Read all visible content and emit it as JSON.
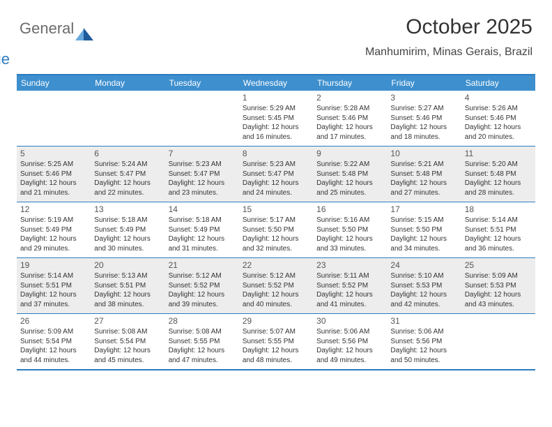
{
  "logo": {
    "word1": "General",
    "word2": "Blue"
  },
  "title": "October 2025",
  "location": "Manhumirim, Minas Gerais, Brazil",
  "colors": {
    "header_bar": "#3d8fce",
    "border": "#2b7bbf",
    "alt_row": "#ededed",
    "logo_gray": "#6b6b6b",
    "logo_blue": "#2b7bbf",
    "sail_light": "#6aa9dd",
    "sail_dark": "#1f5a9a"
  },
  "day_headers": [
    "Sunday",
    "Monday",
    "Tuesday",
    "Wednesday",
    "Thursday",
    "Friday",
    "Saturday"
  ],
  "grid": {
    "first_weekday": 3,
    "days_in_month": 31,
    "alt_weeks": [
      1,
      3
    ]
  },
  "days": {
    "1": {
      "sunrise": "5:29 AM",
      "sunset": "5:45 PM",
      "daylight": "12 hours and 16 minutes."
    },
    "2": {
      "sunrise": "5:28 AM",
      "sunset": "5:46 PM",
      "daylight": "12 hours and 17 minutes."
    },
    "3": {
      "sunrise": "5:27 AM",
      "sunset": "5:46 PM",
      "daylight": "12 hours and 18 minutes."
    },
    "4": {
      "sunrise": "5:26 AM",
      "sunset": "5:46 PM",
      "daylight": "12 hours and 20 minutes."
    },
    "5": {
      "sunrise": "5:25 AM",
      "sunset": "5:46 PM",
      "daylight": "12 hours and 21 minutes."
    },
    "6": {
      "sunrise": "5:24 AM",
      "sunset": "5:47 PM",
      "daylight": "12 hours and 22 minutes."
    },
    "7": {
      "sunrise": "5:23 AM",
      "sunset": "5:47 PM",
      "daylight": "12 hours and 23 minutes."
    },
    "8": {
      "sunrise": "5:23 AM",
      "sunset": "5:47 PM",
      "daylight": "12 hours and 24 minutes."
    },
    "9": {
      "sunrise": "5:22 AM",
      "sunset": "5:48 PM",
      "daylight": "12 hours and 25 minutes."
    },
    "10": {
      "sunrise": "5:21 AM",
      "sunset": "5:48 PM",
      "daylight": "12 hours and 27 minutes."
    },
    "11": {
      "sunrise": "5:20 AM",
      "sunset": "5:48 PM",
      "daylight": "12 hours and 28 minutes."
    },
    "12": {
      "sunrise": "5:19 AM",
      "sunset": "5:49 PM",
      "daylight": "12 hours and 29 minutes."
    },
    "13": {
      "sunrise": "5:18 AM",
      "sunset": "5:49 PM",
      "daylight": "12 hours and 30 minutes."
    },
    "14": {
      "sunrise": "5:18 AM",
      "sunset": "5:49 PM",
      "daylight": "12 hours and 31 minutes."
    },
    "15": {
      "sunrise": "5:17 AM",
      "sunset": "5:50 PM",
      "daylight": "12 hours and 32 minutes."
    },
    "16": {
      "sunrise": "5:16 AM",
      "sunset": "5:50 PM",
      "daylight": "12 hours and 33 minutes."
    },
    "17": {
      "sunrise": "5:15 AM",
      "sunset": "5:50 PM",
      "daylight": "12 hours and 34 minutes."
    },
    "18": {
      "sunrise": "5:14 AM",
      "sunset": "5:51 PM",
      "daylight": "12 hours and 36 minutes."
    },
    "19": {
      "sunrise": "5:14 AM",
      "sunset": "5:51 PM",
      "daylight": "12 hours and 37 minutes."
    },
    "20": {
      "sunrise": "5:13 AM",
      "sunset": "5:51 PM",
      "daylight": "12 hours and 38 minutes."
    },
    "21": {
      "sunrise": "5:12 AM",
      "sunset": "5:52 PM",
      "daylight": "12 hours and 39 minutes."
    },
    "22": {
      "sunrise": "5:12 AM",
      "sunset": "5:52 PM",
      "daylight": "12 hours and 40 minutes."
    },
    "23": {
      "sunrise": "5:11 AM",
      "sunset": "5:52 PM",
      "daylight": "12 hours and 41 minutes."
    },
    "24": {
      "sunrise": "5:10 AM",
      "sunset": "5:53 PM",
      "daylight": "12 hours and 42 minutes."
    },
    "25": {
      "sunrise": "5:09 AM",
      "sunset": "5:53 PM",
      "daylight": "12 hours and 43 minutes."
    },
    "26": {
      "sunrise": "5:09 AM",
      "sunset": "5:54 PM",
      "daylight": "12 hours and 44 minutes."
    },
    "27": {
      "sunrise": "5:08 AM",
      "sunset": "5:54 PM",
      "daylight": "12 hours and 45 minutes."
    },
    "28": {
      "sunrise": "5:08 AM",
      "sunset": "5:55 PM",
      "daylight": "12 hours and 47 minutes."
    },
    "29": {
      "sunrise": "5:07 AM",
      "sunset": "5:55 PM",
      "daylight": "12 hours and 48 minutes."
    },
    "30": {
      "sunrise": "5:06 AM",
      "sunset": "5:56 PM",
      "daylight": "12 hours and 49 minutes."
    },
    "31": {
      "sunrise": "5:06 AM",
      "sunset": "5:56 PM",
      "daylight": "12 hours and 50 minutes."
    }
  },
  "labels": {
    "sunrise": "Sunrise:",
    "sunset": "Sunset:",
    "daylight": "Daylight:"
  }
}
